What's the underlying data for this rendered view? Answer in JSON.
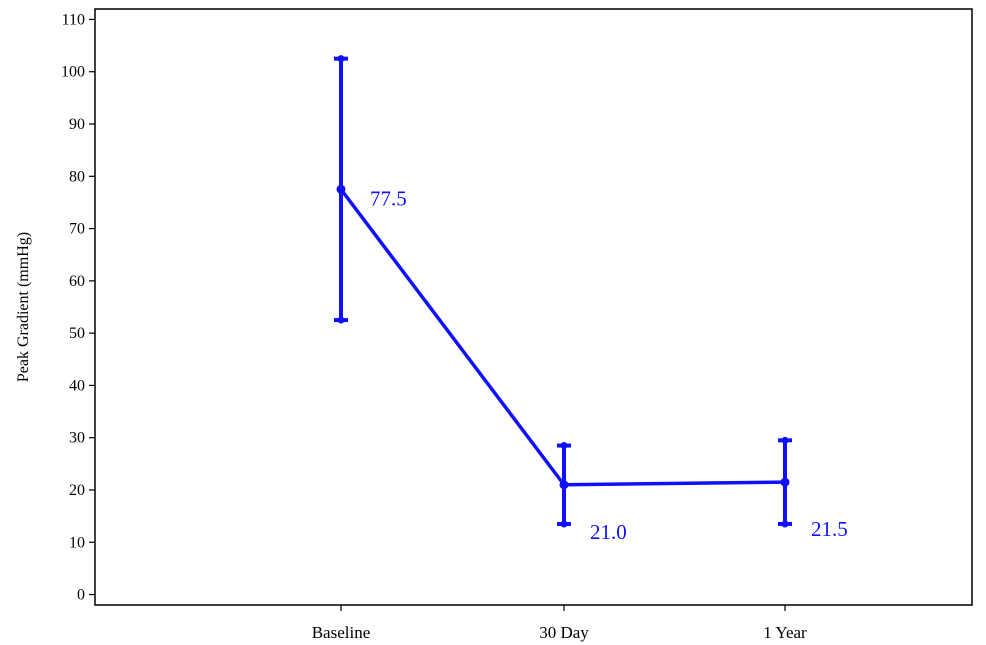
{
  "chart_data": {
    "type": "line",
    "title": "",
    "xlabel": "",
    "ylabel": "Peak Gradient (mmHg)",
    "categories": [
      "Baseline",
      "30 Day",
      "1 Year"
    ],
    "series": [
      {
        "values": [
          77.5,
          21.0,
          21.5
        ],
        "error_low": [
          52.5,
          13.5,
          13.5
        ],
        "error_high": [
          102.5,
          28.5,
          29.5
        ],
        "data_labels": [
          "77.5",
          "21.0",
          "21.5"
        ],
        "color": "#1010ff"
      }
    ],
    "ylim": [
      -2,
      112
    ],
    "yticks": [
      0,
      10,
      20,
      30,
      40,
      50,
      60,
      70,
      80,
      90,
      100,
      110
    ],
    "ytick_labels": [
      "0",
      "10",
      "20",
      "30",
      "40",
      "50",
      "60",
      "70",
      "80",
      "90",
      "100",
      "110"
    ],
    "grid": false,
    "legend": "none",
    "axis_color": "#000000"
  }
}
